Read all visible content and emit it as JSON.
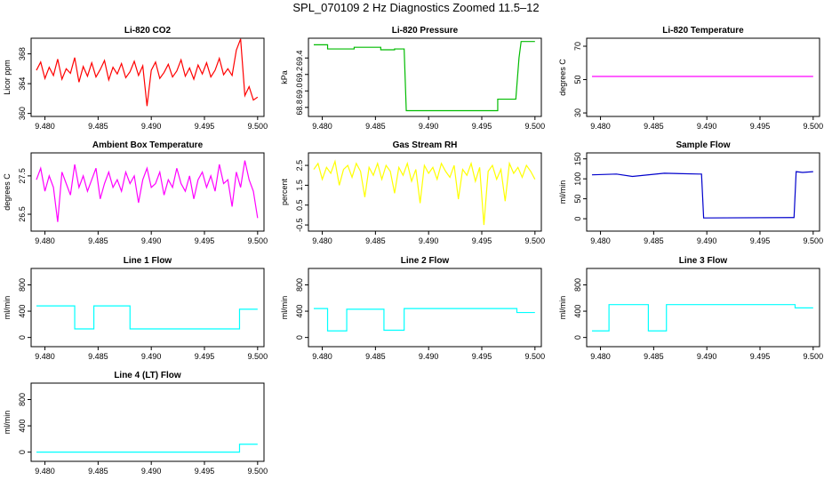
{
  "title": "SPL_070109  2 Hz Diagnostics Zoomed 11.5–12",
  "chart_data": [
    {
      "type": "line",
      "title": "Li-820 CO2",
      "ylabel": "Licor ppm",
      "color": "#ff0000",
      "x": [
        9.4792,
        9.4796,
        9.48,
        9.4804,
        9.4808,
        9.4812,
        9.4816,
        9.482,
        9.4824,
        9.4828,
        9.4832,
        9.4836,
        9.484,
        9.4844,
        9.4848,
        9.4852,
        9.4856,
        9.486,
        9.4864,
        9.4868,
        9.4872,
        9.4876,
        9.488,
        9.4884,
        9.4888,
        9.4892,
        9.4896,
        9.49,
        9.4904,
        9.4908,
        9.4912,
        9.4916,
        9.492,
        9.4924,
        9.4928,
        9.4932,
        9.4936,
        9.494,
        9.4944,
        9.4948,
        9.4952,
        9.4956,
        9.496,
        9.4964,
        9.4968,
        9.4972,
        9.4976,
        9.498,
        9.4984,
        9.4988,
        9.4992,
        9.4996,
        9.5
      ],
      "values": [
        365.8,
        366.9,
        364.7,
        366.2,
        365.1,
        367.3,
        364.6,
        366.0,
        365.4,
        367.5,
        364.2,
        366.3,
        365.0,
        366.8,
        364.9,
        365.9,
        367.1,
        364.5,
        366.2,
        365.3,
        366.7,
        364.8,
        365.6,
        367.0,
        365.1,
        366.4,
        361.0,
        365.8,
        366.9,
        364.7,
        365.5,
        366.6,
        364.9,
        365.7,
        367.2,
        365.0,
        366.1,
        364.6,
        366.5,
        365.3,
        366.8,
        364.9,
        365.8,
        367.4,
        365.2,
        366.0,
        365.1,
        368.5,
        370.0,
        362.4,
        363.6,
        361.8,
        362.2
      ],
      "xlim": [
        9.4787,
        9.5006
      ],
      "xticks": [
        {
          "value": 9.48,
          "label": "9.480"
        },
        {
          "value": 9.485,
          "label": "9.485"
        },
        {
          "value": 9.49,
          "label": "9.490"
        },
        {
          "value": 9.495,
          "label": "9.495"
        },
        {
          "value": 9.5,
          "label": "9.500"
        }
      ],
      "ylim": [
        359.6,
        370.1
      ],
      "yticks": [
        360,
        364,
        368
      ]
    },
    {
      "type": "line",
      "title": "Li-820 Pressure",
      "ylabel": "kPa",
      "color": "#00bb00",
      "x": [
        9.4792,
        9.4805,
        9.4805,
        9.483,
        9.483,
        9.4855,
        9.4855,
        9.4868,
        9.4868,
        9.4877,
        9.4879,
        9.4965,
        9.4965,
        9.4982,
        9.4985,
        9.4987,
        9.5
      ],
      "values": [
        69.56,
        69.56,
        69.51,
        69.51,
        69.53,
        69.53,
        69.5,
        69.5,
        69.51,
        69.51,
        68.76,
        68.76,
        68.9,
        68.9,
        69.4,
        69.6,
        69.6
      ],
      "xlim": [
        9.4787,
        9.5006
      ],
      "xticks": [
        {
          "value": 9.48,
          "label": "9.480"
        },
        {
          "value": 9.485,
          "label": "9.485"
        },
        {
          "value": 9.49,
          "label": "9.490"
        },
        {
          "value": 9.495,
          "label": "9.495"
        },
        {
          "value": 9.5,
          "label": "9.500"
        }
      ],
      "ylim": [
        68.69,
        69.64
      ],
      "yticks": [
        68.8,
        {
          "value": 69,
          "label": "69.0"
        },
        69.2,
        69.4
      ]
    },
    {
      "type": "line",
      "title": "Li-820 Temperature",
      "ylabel": "degrees C",
      "color": "#ff00ff",
      "x": [
        9.4792,
        9.5
      ],
      "values": [
        51.9,
        51.9
      ],
      "xlim": [
        9.4787,
        9.5006
      ],
      "xticks": [
        {
          "value": 9.48,
          "label": "9.480"
        },
        {
          "value": 9.485,
          "label": "9.485"
        },
        {
          "value": 9.49,
          "label": "9.490"
        },
        {
          "value": 9.495,
          "label": "9.495"
        },
        {
          "value": 9.5,
          "label": "9.500"
        }
      ],
      "ylim": [
        27.9,
        74.8
      ],
      "yticks": [
        30,
        50,
        70
      ]
    },
    {
      "type": "line",
      "title": "Ambient Box Temperature",
      "ylabel": "degrees C",
      "color": "#ff00ff",
      "x": [
        9.4792,
        9.4796,
        9.48,
        9.4804,
        9.4808,
        9.4812,
        9.4816,
        9.482,
        9.4824,
        9.4828,
        9.4832,
        9.4836,
        9.484,
        9.4844,
        9.4848,
        9.4852,
        9.4856,
        9.486,
        9.4864,
        9.4868,
        9.4872,
        9.4876,
        9.488,
        9.4884,
        9.4888,
        9.4892,
        9.4896,
        9.49,
        9.4904,
        9.4908,
        9.4912,
        9.4916,
        9.492,
        9.4924,
        9.4928,
        9.4932,
        9.4936,
        9.494,
        9.4944,
        9.4948,
        9.4952,
        9.4956,
        9.496,
        9.4964,
        9.4968,
        9.4972,
        9.4976,
        9.498,
        9.4984,
        9.4988,
        9.4992,
        9.4996,
        9.5
      ],
      "values": [
        27.4,
        27.7,
        27.1,
        27.5,
        27.2,
        26.3,
        27.6,
        27.3,
        27.0,
        27.8,
        27.2,
        27.5,
        27.1,
        27.4,
        27.7,
        26.9,
        27.3,
        27.6,
        27.2,
        27.4,
        27.1,
        27.6,
        27.3,
        27.5,
        26.8,
        27.4,
        27.7,
        27.2,
        27.3,
        27.6,
        27.0,
        27.4,
        27.2,
        27.7,
        27.3,
        27.1,
        27.5,
        26.9,
        27.4,
        27.6,
        27.2,
        27.5,
        27.1,
        27.8,
        27.3,
        27.4,
        26.7,
        27.6,
        27.2,
        27.9,
        27.4,
        27.1,
        26.4
      ],
      "xlim": [
        9.4787,
        9.5006
      ],
      "xticks": [
        {
          "value": 9.48,
          "label": "9.480"
        },
        {
          "value": 9.485,
          "label": "9.485"
        },
        {
          "value": 9.49,
          "label": "9.490"
        },
        {
          "value": 9.495,
          "label": "9.495"
        },
        {
          "value": 9.5,
          "label": "9.500"
        }
      ],
      "ylim": [
        26.06,
        28.1
      ],
      "yticks": [
        26.5,
        27.5
      ]
    },
    {
      "type": "line",
      "title": "Gas Stream RH",
      "ylabel": "percent",
      "color": "#ffff00",
      "x": [
        9.4792,
        9.4796,
        9.48,
        9.4804,
        9.4808,
        9.4812,
        9.4816,
        9.482,
        9.4824,
        9.4828,
        9.4832,
        9.4836,
        9.484,
        9.4844,
        9.4848,
        9.4852,
        9.4856,
        9.486,
        9.4864,
        9.4868,
        9.4872,
        9.4876,
        9.488,
        9.4884,
        9.4888,
        9.4892,
        9.4896,
        9.49,
        9.4904,
        9.4908,
        9.4912,
        9.4916,
        9.492,
        9.4924,
        9.4928,
        9.4932,
        9.4936,
        9.494,
        9.4944,
        9.4948,
        9.4952,
        9.4956,
        9.496,
        9.4964,
        9.4968,
        9.4972,
        9.4976,
        9.498,
        9.4984,
        9.4988,
        9.4992,
        9.4996,
        9.5
      ],
      "values": [
        2.3,
        2.6,
        1.8,
        2.4,
        2.1,
        2.7,
        1.5,
        2.3,
        2.5,
        1.9,
        2.6,
        2.2,
        0.9,
        2.4,
        2.0,
        2.6,
        1.8,
        2.5,
        2.2,
        1.1,
        2.4,
        2.0,
        2.6,
        1.7,
        2.3,
        0.6,
        2.5,
        2.1,
        2.4,
        1.8,
        2.6,
        2.2,
        1.9,
        2.5,
        0.8,
        2.3,
        2.0,
        2.6,
        1.7,
        2.4,
        -0.5,
        2.2,
        2.5,
        1.8,
        2.3,
        0.7,
        2.6,
        2.1,
        2.4,
        1.9,
        2.5,
        2.2,
        1.8
      ],
      "xlim": [
        9.4787,
        9.5006
      ],
      "xticks": [
        {
          "value": 9.48,
          "label": "9.480"
        },
        {
          "value": 9.485,
          "label": "9.485"
        },
        {
          "value": 9.49,
          "label": "9.490"
        },
        {
          "value": 9.495,
          "label": "9.495"
        },
        {
          "value": 9.5,
          "label": "9.500"
        }
      ],
      "ylim": [
        -0.81,
        3.13
      ],
      "yticks": [
        -0.5,
        0.5,
        1.5,
        2.5
      ]
    },
    {
      "type": "line",
      "title": "Sample Flow",
      "ylabel": "ml/min",
      "color": "#0000cc",
      "x": [
        9.4792,
        9.4815,
        9.483,
        9.486,
        9.4893,
        9.4895,
        9.4897,
        9.4982,
        9.4984,
        9.499,
        9.5
      ],
      "values": [
        110,
        112,
        106,
        114,
        112,
        112,
        2,
        3,
        118,
        116,
        118
      ],
      "xlim": [
        9.4787,
        9.5006
      ],
      "xticks": [
        {
          "value": 9.48,
          "label": "9.480"
        },
        {
          "value": 9.485,
          "label": "9.485"
        },
        {
          "value": 9.49,
          "label": "9.490"
        },
        {
          "value": 9.495,
          "label": "9.495"
        },
        {
          "value": 9.5,
          "label": "9.500"
        }
      ],
      "ylim": [
        -31,
        165
      ],
      "yticks": [
        0,
        50,
        100,
        150
      ]
    },
    {
      "type": "line",
      "title": "Line 1 Flow",
      "ylabel": "ml/min",
      "color": "#00ffff",
      "x": [
        9.4792,
        9.4828,
        9.4828,
        9.4846,
        9.4846,
        9.488,
        9.488,
        9.4983,
        9.4983,
        9.5
      ],
      "values": [
        480,
        480,
        130,
        130,
        480,
        480,
        130,
        130,
        430,
        430
      ],
      "xlim": [
        9.4787,
        9.5006
      ],
      "xticks": [
        {
          "value": 9.48,
          "label": "9.480"
        },
        {
          "value": 9.485,
          "label": "9.485"
        },
        {
          "value": 9.49,
          "label": "9.490"
        },
        {
          "value": 9.495,
          "label": "9.495"
        },
        {
          "value": 9.5,
          "label": "9.500"
        }
      ],
      "ylim": [
        -140,
        1050
      ],
      "yticks": [
        0,
        400,
        800
      ]
    },
    {
      "type": "line",
      "title": "Line 2 Flow",
      "ylabel": "ml/min",
      "color": "#00ffff",
      "x": [
        9.4792,
        9.4805,
        9.4805,
        9.4823,
        9.4823,
        9.4858,
        9.4858,
        9.4877,
        9.4877,
        9.4983,
        9.4983,
        9.5
      ],
      "values": [
        440,
        440,
        100,
        100,
        430,
        430,
        110,
        110,
        440,
        440,
        380,
        380
      ],
      "xlim": [
        9.4787,
        9.5006
      ],
      "xticks": [
        {
          "value": 9.48,
          "label": "9.480"
        },
        {
          "value": 9.485,
          "label": "9.485"
        },
        {
          "value": 9.49,
          "label": "9.490"
        },
        {
          "value": 9.495,
          "label": "9.495"
        },
        {
          "value": 9.5,
          "label": "9.500"
        }
      ],
      "ylim": [
        -140,
        1050
      ],
      "yticks": [
        0,
        400,
        800
      ]
    },
    {
      "type": "line",
      "title": "Line 3 Flow",
      "ylabel": "ml/min",
      "color": "#00ffff",
      "x": [
        9.4792,
        9.4808,
        9.4808,
        9.4845,
        9.4845,
        9.4862,
        9.4862,
        9.4983,
        9.4983,
        9.5
      ],
      "values": [
        100,
        100,
        500,
        500,
        100,
        100,
        500,
        500,
        450,
        450
      ],
      "xlim": [
        9.4787,
        9.5006
      ],
      "xticks": [
        {
          "value": 9.48,
          "label": "9.480"
        },
        {
          "value": 9.485,
          "label": "9.485"
        },
        {
          "value": 9.49,
          "label": "9.490"
        },
        {
          "value": 9.495,
          "label": "9.495"
        },
        {
          "value": 9.5,
          "label": "9.500"
        }
      ],
      "ylim": [
        -140,
        1050
      ],
      "yticks": [
        0,
        400,
        800
      ]
    },
    {
      "type": "line",
      "title": "Line 4 (LT) Flow",
      "ylabel": "ml/min",
      "color": "#00ffff",
      "x": [
        9.4792,
        9.4983,
        9.4983,
        9.5
      ],
      "values": [
        0,
        0,
        120,
        120
      ],
      "xlim": [
        9.4787,
        9.5006
      ],
      "xticks": [
        {
          "value": 9.48,
          "label": "9.480"
        },
        {
          "value": 9.485,
          "label": "9.485"
        },
        {
          "value": 9.49,
          "label": "9.490"
        },
        {
          "value": 9.495,
          "label": "9.495"
        },
        {
          "value": 9.5,
          "label": "9.500"
        }
      ],
      "ylim": [
        -140,
        1050
      ],
      "yticks": [
        0,
        400,
        800
      ]
    }
  ]
}
